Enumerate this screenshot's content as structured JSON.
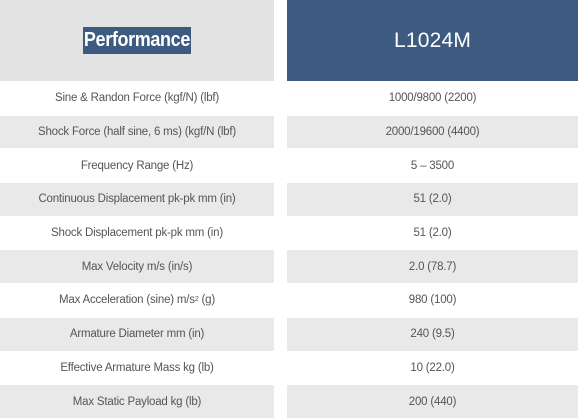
{
  "header": {
    "left_label": "Performance",
    "right_label": "L1024M"
  },
  "rows": [
    {
      "label": "Sine & Randon Force (kgf/N) (lbf)",
      "value": "1000/9800 (2200)"
    },
    {
      "label": "Shock Force (half sine, 6 ms) (kgf/N (lbf)",
      "value": "2000/19600 (4400)"
    },
    {
      "label": "Frequency Range (Hz)",
      "value": "5 – 3500"
    },
    {
      "label": "Continuous Displacement pk-pk mm (in)",
      "value": "51 (2.0)"
    },
    {
      "label": "Shock Displacement pk-pk mm (in)",
      "value": "51 (2.0)"
    },
    {
      "label": "Max Velocity m/s (in/s)",
      "value": "2.0 (78.7)"
    },
    {
      "label_pre": "Max Acceleration (sine) m/s",
      "label_sup": "2",
      "label_post": " (g)",
      "value": "980 (100)"
    },
    {
      "label": "Armature Diameter mm (in)",
      "value": "240 (9.5)"
    },
    {
      "label": "Effective Armature Mass kg (lb)",
      "value": "10 (22.0)"
    },
    {
      "label": "Max Static Payload kg (lb)",
      "value": "200 (440)"
    }
  ],
  "colors": {
    "header_accent": "#3d5a80",
    "header_left_bg": "#e3e3e3",
    "row_alt_bg": "#e9e9e9",
    "text": "#555555"
  }
}
